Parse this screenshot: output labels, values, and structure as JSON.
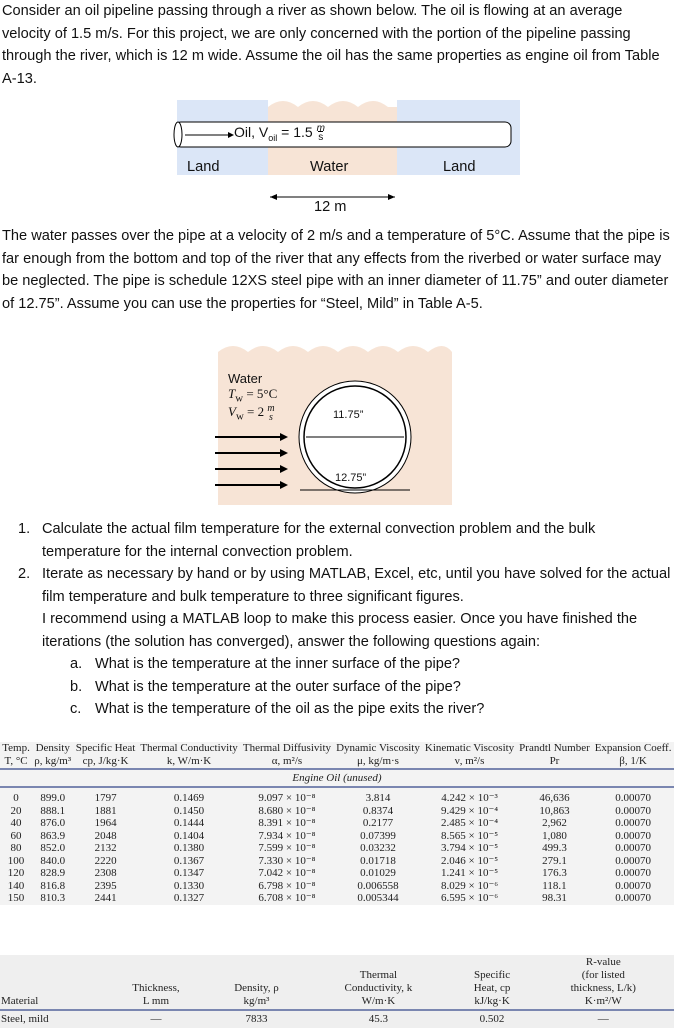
{
  "intro": "Consider an oil pipeline passing through a river as shown below. The oil is flowing at an average velocity of 1.5 m/s. For this project, we are only concerned with the portion of the pipeline passing through the river, which is 12 m wide. Assume the oil has the same properties as engine oil from Table A-13.",
  "fig1": {
    "oil_label": "Oil, V",
    "oil_sub": "oil",
    "oil_eq": " = 1.5",
    "unit_num": "m",
    "unit_den": "s",
    "land_left": "Land",
    "water": "Water",
    "land_right": "Land",
    "width": "12 m"
  },
  "para2": "The water passes over the pipe at a velocity of 2 m/s and a temperature of 5°C. Assume that the pipe is far enough from the bottom and top of the river that any effects from the riverbed or water surface may be neglected. The pipe is schedule 12XS steel pipe with an inner diameter of 11.75” and outer diameter of 12.75”. Assume you can use the properties for “Steel, Mild” in Table A-5.",
  "fig2": {
    "water": "Water",
    "tw": "T",
    "tw_sub": "w",
    "tw_val": " = 5°C",
    "vw": "V",
    "vw_sub": "w",
    "vw_val": " = 2",
    "unit_num": "m",
    "unit_den": "s",
    "inner": "11.75”",
    "outer": "12.75”"
  },
  "questions": [
    {
      "n": "1.",
      "text": "Calculate the actual film temperature for the external convection problem and the bulk temperature for the internal convection problem."
    },
    {
      "n": "2.",
      "text": "Iterate as necessary by hand or by using MATLAB, Excel, etc, until you have solved for the actual film temperature and bulk temperature to three significant figures.",
      "extra": "I recommend using a MATLAB loop to make this process easier. Once you have finished the iterations (the solution has converged), answer the following questions again:"
    }
  ],
  "subquestions": [
    {
      "n": "a.",
      "text": "What is the temperature at the inner surface of the pipe?"
    },
    {
      "n": "b.",
      "text": "What is the temperature at the outer surface of the pipe?"
    },
    {
      "n": "c.",
      "text": "What is the temperature of the oil as the pipe exits the river?"
    }
  ],
  "table_a13": {
    "headers": [
      [
        "Temp.",
        "T, °C"
      ],
      [
        "Density",
        "ρ, kg/m³"
      ],
      [
        "Specific Heat",
        "cp, J/kg·K"
      ],
      [
        "Thermal Conductivity",
        "k, W/m·K"
      ],
      [
        "Thermal Diffusivity",
        "α, m²/s"
      ],
      [
        "Dynamic Viscosity",
        "μ, kg/m·s"
      ],
      [
        "Kinematic Viscosity",
        "ν, m²/s"
      ],
      [
        "Prandtl Number",
        "Pr"
      ],
      [
        "Expansion Coeff.",
        "β, 1/K"
      ]
    ],
    "section": "Engine Oil (unused)",
    "rows": [
      [
        "0",
        "899.0",
        "1797",
        "0.1469",
        "9.097 × 10⁻⁸",
        "3.814",
        "4.242 × 10⁻³",
        "46,636",
        "0.00070"
      ],
      [
        "20",
        "888.1",
        "1881",
        "0.1450",
        "8.680 × 10⁻⁸",
        "0.8374",
        "9.429 × 10⁻⁴",
        "10,863",
        "0.00070"
      ],
      [
        "40",
        "876.0",
        "1964",
        "0.1444",
        "8.391 × 10⁻⁸",
        "0.2177",
        "2.485 × 10⁻⁴",
        "2,962",
        "0.00070"
      ],
      [
        "60",
        "863.9",
        "2048",
        "0.1404",
        "7.934 × 10⁻⁸",
        "0.07399",
        "8.565 × 10⁻⁵",
        "1,080",
        "0.00070"
      ],
      [
        "80",
        "852.0",
        "2132",
        "0.1380",
        "7.599 × 10⁻⁸",
        "0.03232",
        "3.794 × 10⁻⁵",
        "499.3",
        "0.00070"
      ],
      [
        "100",
        "840.0",
        "2220",
        "0.1367",
        "7.330 × 10⁻⁸",
        "0.01718",
        "2.046 × 10⁻⁵",
        "279.1",
        "0.00070"
      ],
      [
        "120",
        "828.9",
        "2308",
        "0.1347",
        "7.042 × 10⁻⁸",
        "0.01029",
        "1.241 × 10⁻⁵",
        "176.3",
        "0.00070"
      ],
      [
        "140",
        "816.8",
        "2395",
        "0.1330",
        "6.798 × 10⁻⁸",
        "0.006558",
        "8.029 × 10⁻⁶",
        "118.1",
        "0.00070"
      ],
      [
        "150",
        "810.3",
        "2441",
        "0.1327",
        "6.708 × 10⁻⁸",
        "0.005344",
        "6.595 × 10⁻⁶",
        "98.31",
        "0.00070"
      ]
    ]
  },
  "table_a5": {
    "headers": [
      [
        "Material"
      ],
      [
        "Thickness,",
        "L mm"
      ],
      [
        "Density, ρ",
        "kg/m³"
      ],
      [
        "Thermal",
        "Conductivity, k",
        "W/m·K"
      ],
      [
        "Specific",
        "Heat, cp",
        "kJ/kg·K"
      ],
      [
        "R-value",
        "(for listed",
        "thickness, L/k)",
        "K·m²/W"
      ]
    ],
    "row": [
      "Steel, mild",
      "—",
      "7833",
      "45.3",
      "0.502",
      "—"
    ]
  }
}
